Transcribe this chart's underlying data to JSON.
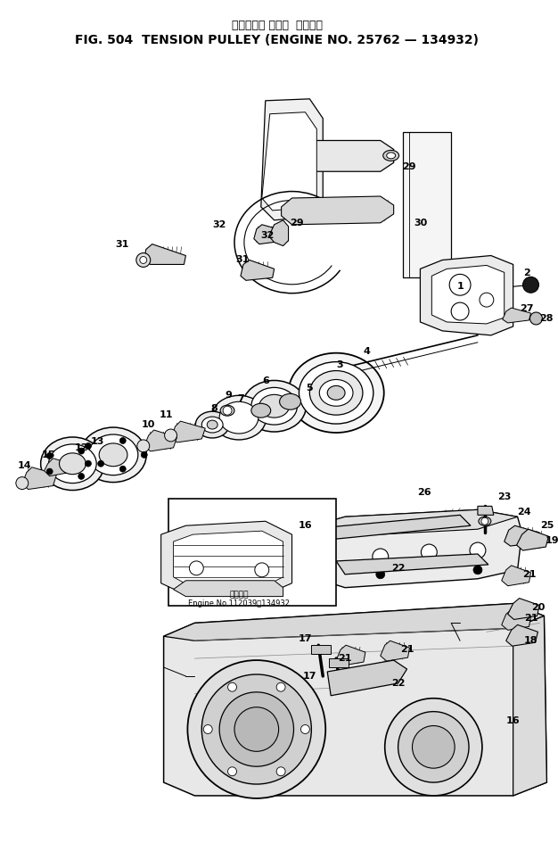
{
  "title_japanese": "テンション プーリ  適用号機",
  "title_english": "FIG. 504  TENSION PULLEY (ENGINE NO. 25762 — 134932)",
  "inset_label1": "適用号機",
  "inset_label2": "Engine No.112039～134932",
  "bg_color": "#ffffff",
  "fig_width": 6.26,
  "fig_height": 9.73,
  "dpi": 100
}
